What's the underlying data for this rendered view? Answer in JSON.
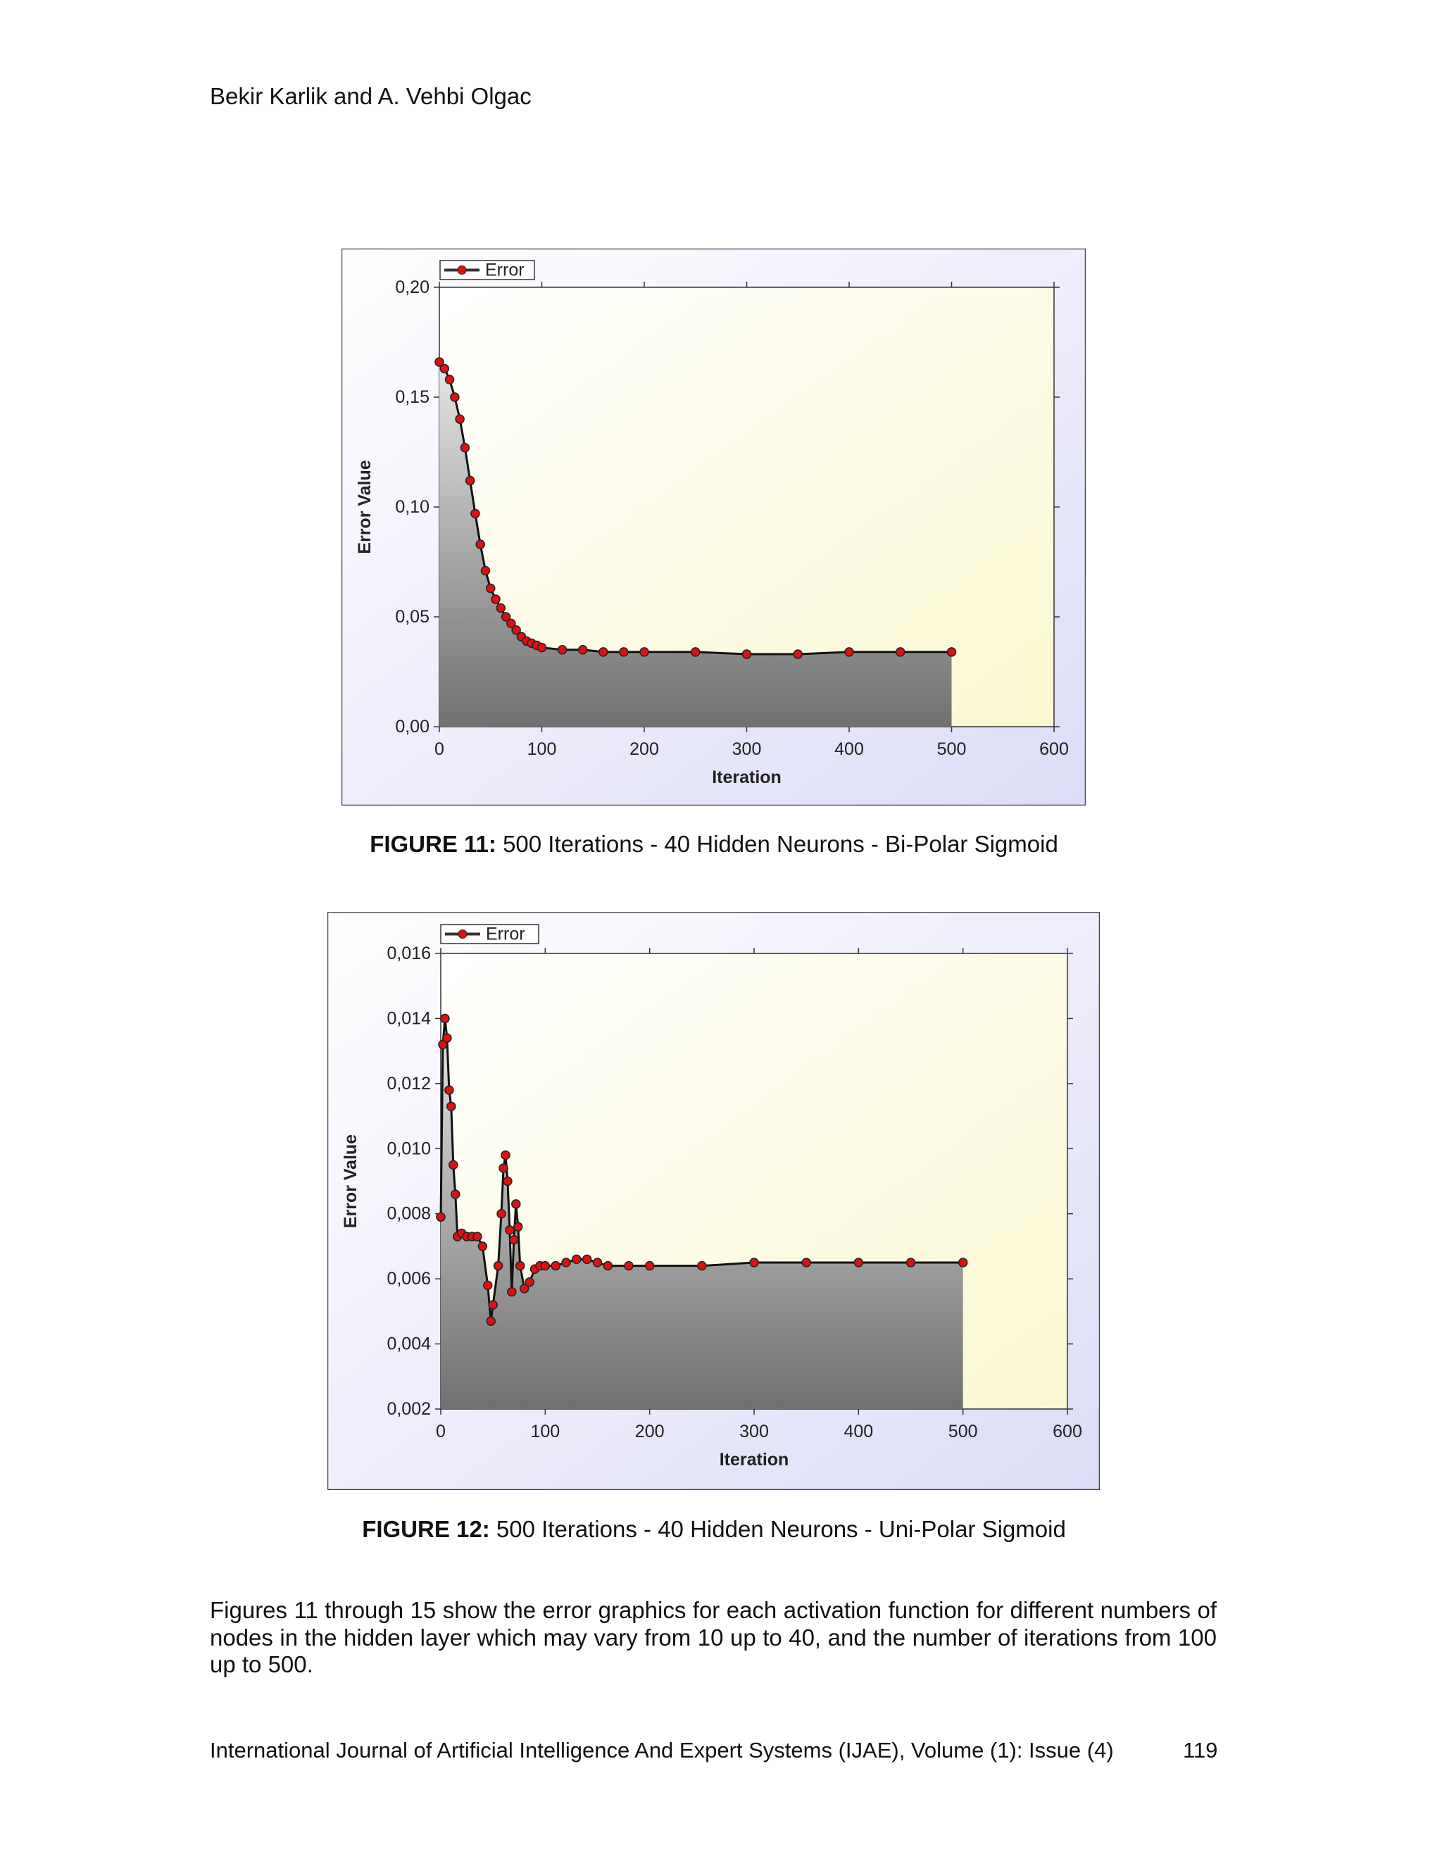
{
  "header": "Bekir Karlik and A. Vehbi Olgac",
  "chart_data": [
    {
      "type": "line",
      "xlabel": "Iteration",
      "ylabel": "Error Value",
      "x": [
        0,
        5,
        10,
        15,
        20,
        25,
        30,
        35,
        40,
        45,
        50,
        55,
        60,
        65,
        70,
        75,
        80,
        85,
        90,
        95,
        100,
        120,
        140,
        160,
        180,
        200,
        250,
        300,
        350,
        400,
        450,
        500
      ],
      "series": [
        {
          "name": "Error",
          "color": "#dd1111",
          "values": [
            0.166,
            0.163,
            0.158,
            0.15,
            0.14,
            0.127,
            0.112,
            0.097,
            0.083,
            0.071,
            0.063,
            0.058,
            0.054,
            0.05,
            0.047,
            0.044,
            0.041,
            0.039,
            0.038,
            0.037,
            0.036,
            0.035,
            0.035,
            0.034,
            0.034,
            0.034,
            0.034,
            0.033,
            0.033,
            0.034,
            0.034,
            0.034
          ]
        }
      ],
      "xlim": [
        0,
        600
      ],
      "xticks": [
        0,
        100,
        200,
        300,
        400,
        500,
        600
      ],
      "ylim": [
        0,
        0.2
      ],
      "yticks": [
        {
          "value": 0,
          "label": "0,00"
        },
        {
          "value": 0.05,
          "label": "0,05"
        },
        {
          "value": 0.1,
          "label": "0,10"
        },
        {
          "value": 0.15,
          "label": "0,15"
        },
        {
          "value": 0.2,
          "label": "0,20"
        }
      ],
      "legend": "top-left"
    },
    {
      "type": "line",
      "xlabel": "Iteration",
      "ylabel": "Error Value",
      "x": [
        0,
        2,
        4,
        6,
        8,
        10,
        12,
        14,
        16,
        20,
        25,
        30,
        35,
        40,
        45,
        48,
        50,
        55,
        58,
        60,
        62,
        64,
        66,
        68,
        70,
        72,
        74,
        76,
        80,
        85,
        90,
        95,
        100,
        110,
        120,
        130,
        140,
        150,
        160,
        180,
        200,
        250,
        300,
        350,
        400,
        450,
        500
      ],
      "series": [
        {
          "name": "Error",
          "color": "#dd1111",
          "values": [
            0.0079,
            0.0132,
            0.014,
            0.0134,
            0.0118,
            0.0113,
            0.0095,
            0.0086,
            0.0073,
            0.0074,
            0.0073,
            0.0073,
            0.0073,
            0.007,
            0.0058,
            0.0047,
            0.0052,
            0.0064,
            0.008,
            0.0094,
            0.0098,
            0.009,
            0.0075,
            0.0056,
            0.0072,
            0.0083,
            0.0076,
            0.0064,
            0.0057,
            0.0059,
            0.0063,
            0.0064,
            0.0064,
            0.0064,
            0.0065,
            0.0066,
            0.0066,
            0.0065,
            0.0064,
            0.0064,
            0.0064,
            0.0064,
            0.0065,
            0.0065,
            0.0065,
            0.0065,
            0.0065
          ]
        }
      ],
      "xlim": [
        0,
        600
      ],
      "xticks": [
        0,
        100,
        200,
        300,
        400,
        500,
        600
      ],
      "ylim": [
        0.002,
        0.016
      ],
      "yticks": [
        {
          "value": 0.002,
          "label": "0,002"
        },
        {
          "value": 0.004,
          "label": "0,004"
        },
        {
          "value": 0.006,
          "label": "0,006"
        },
        {
          "value": 0.008,
          "label": "0,008"
        },
        {
          "value": 0.01,
          "label": "0,010"
        },
        {
          "value": 0.012,
          "label": "0,012"
        },
        {
          "value": 0.014,
          "label": "0,014"
        },
        {
          "value": 0.016,
          "label": "0,016"
        }
      ],
      "legend": "top-left"
    }
  ],
  "captions": [
    {
      "label": "FIGURE 11:",
      "text": "500 Iterations - 40 Hidden Neurons - Bi-Polar Sigmoid"
    },
    {
      "label": "FIGURE 12:",
      "text": "500 Iterations - 40 Hidden Neurons - Uni-Polar Sigmoid"
    }
  ],
  "paragraph": "Figures 11 through 15 show the error graphics for each activation function for different numbers of nodes in the hidden layer which may vary from 10 up to 40, and the number of iterations from 100 up to 500.",
  "footer": {
    "journal": "International Journal of Artificial Intelligence And Expert Systems (IJAE), Volume (1): Issue (4)",
    "page": "119"
  }
}
